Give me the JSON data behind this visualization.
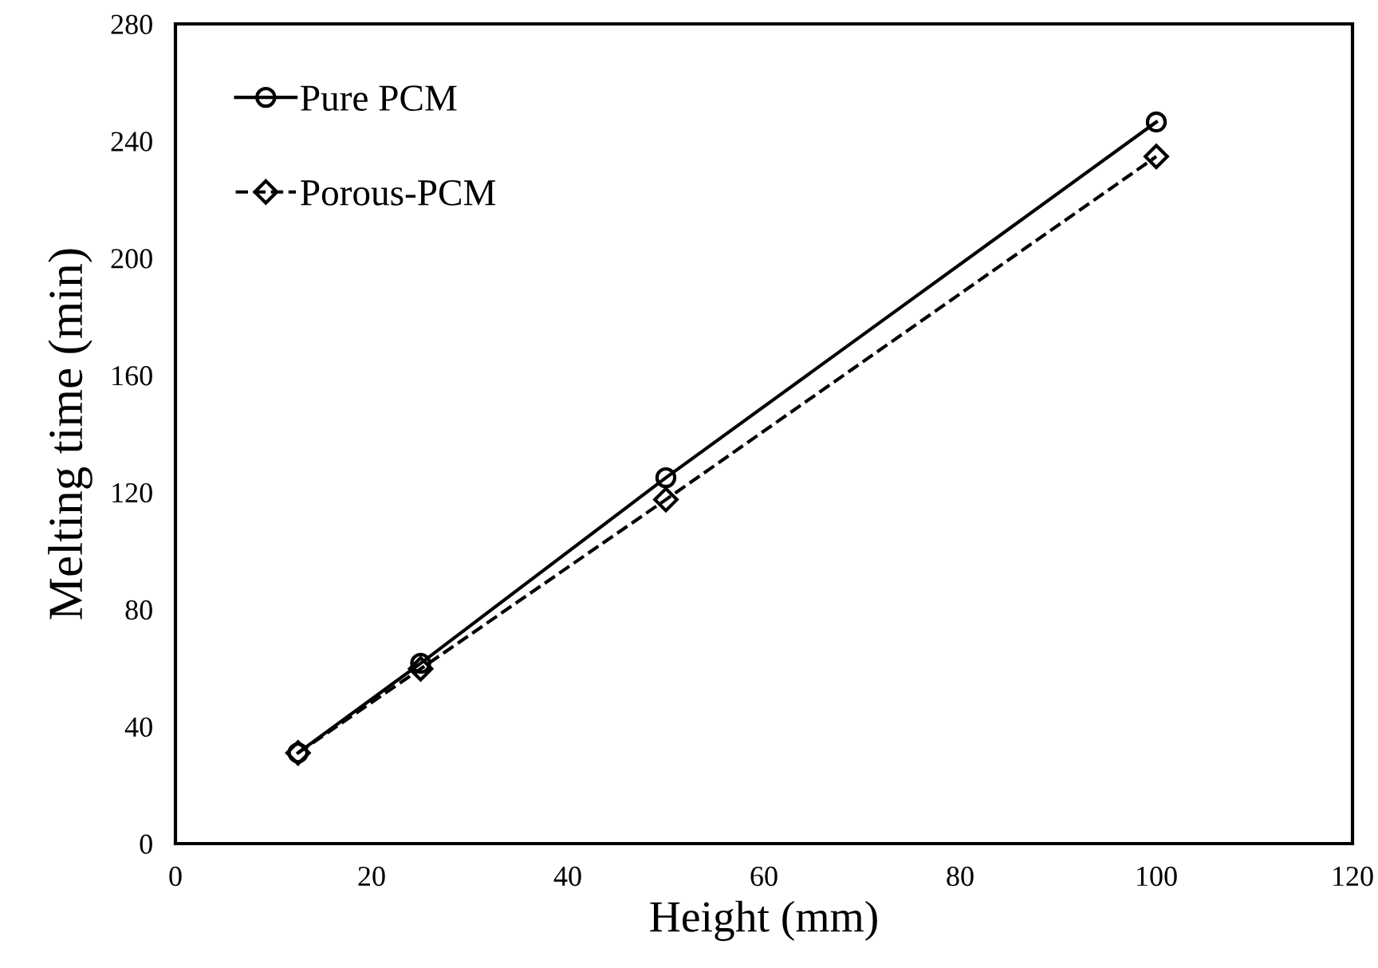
{
  "chart_data": {
    "type": "line",
    "xlabel": "Height (mm)",
    "ylabel": "Melting time (min)",
    "x": [
      12.5,
      25,
      50,
      100
    ],
    "series": [
      {
        "name": "Pure PCM",
        "color": "#000000",
        "values": [
          31,
          61.6,
          125,
          246.5
        ],
        "marker": "circle",
        "line_style": "solid"
      },
      {
        "name": "Porous-PCM",
        "color": "#000000",
        "values": [
          31,
          59.7,
          117.5,
          234.7
        ],
        "marker": "diamond",
        "line_style": "dashed"
      }
    ],
    "xlim": [
      0,
      120
    ],
    "xticks": [
      0,
      20,
      40,
      60,
      80,
      100,
      120
    ],
    "ylim": [
      0,
      280
    ],
    "yticks": [
      0,
      40,
      80,
      120,
      160,
      200,
      240,
      280
    ],
    "grid": false,
    "legend": "top left"
  }
}
